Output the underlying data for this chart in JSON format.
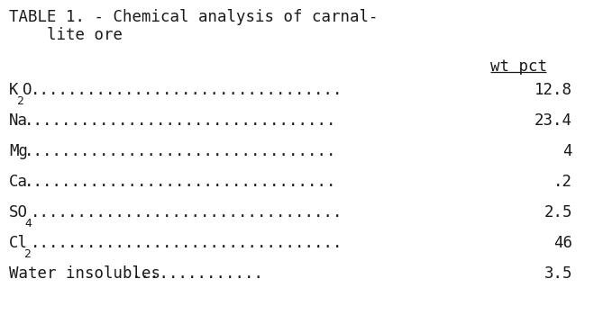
{
  "title_line1": "TABLE 1. - Chemical analysis of carnal-",
  "title_line2": "    lite ore",
  "header": "wt pct",
  "rows": [
    {
      "label_plain": "K",
      "label_sub": "2",
      "label_post": "O",
      "dots_count": 33,
      "value": "12.8"
    },
    {
      "label_plain": "Na",
      "label_sub": "",
      "label_post": "",
      "dots_count": 33,
      "value": "23.4"
    },
    {
      "label_plain": "Mg",
      "label_sub": "",
      "label_post": "",
      "dots_count": 33,
      "value": "4"
    },
    {
      "label_plain": "Ca",
      "label_sub": "",
      "label_post": "",
      "dots_count": 33,
      "value": ".2"
    },
    {
      "label_plain": "SO",
      "label_sub": "4",
      "label_post": "",
      "dots_count": 33,
      "value": "2.5"
    },
    {
      "label_plain": "Cl",
      "label_sub": "2",
      "label_post": "",
      "dots_count": 33,
      "value": "46"
    },
    {
      "label_plain": "Water insolubles",
      "label_sub": "",
      "label_post": "",
      "dots_count": 14,
      "value": "3.5"
    }
  ],
  "bg_color": "#ffffff",
  "text_color": "#1a1a1a",
  "font_size": 12.5,
  "title_font_size": 12.5,
  "fig_width": 6.59,
  "fig_height": 3.5,
  "dpi": 100
}
